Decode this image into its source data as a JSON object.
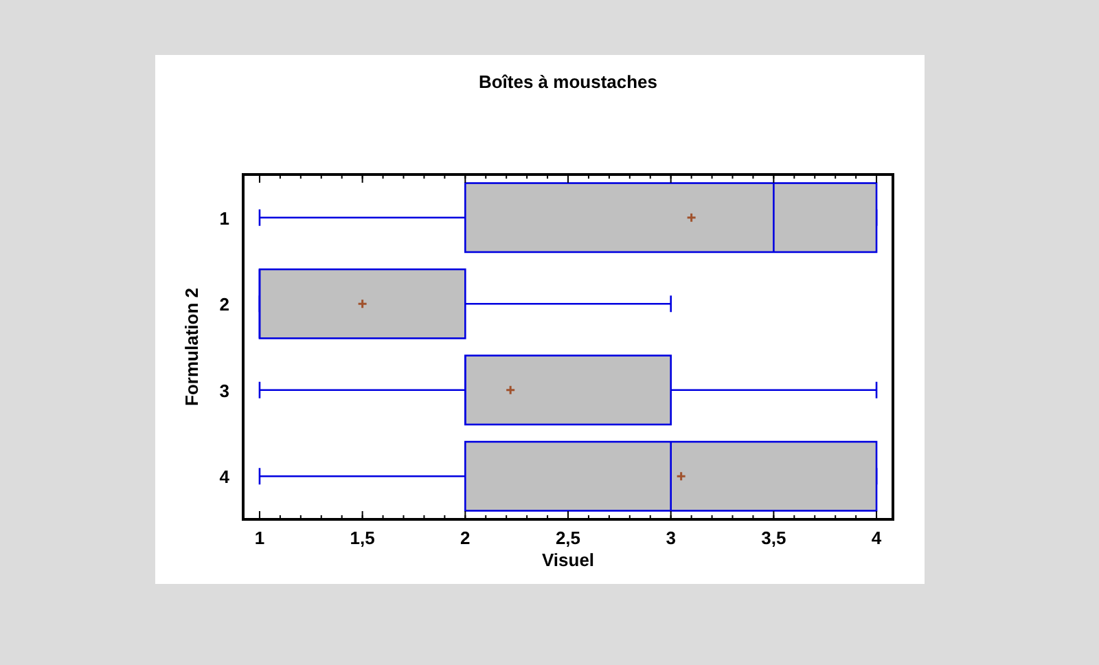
{
  "chart_data": {
    "type": "box",
    "title": "Boîtes à moustaches",
    "xlabel": "Visuel",
    "ylabel": "Formulation 2",
    "orientation": "horizontal",
    "categories": [
      "1",
      "2",
      "3",
      "4"
    ],
    "series": [
      {
        "color": "#c0c0c0",
        "boxes": [
          {
            "low": 1,
            "q1": 2,
            "median": 3.5,
            "q3": 4,
            "high": 4,
            "mean": 3.1
          },
          {
            "low": 1,
            "q1": 1,
            "median": 1,
            "q3": 2,
            "high": 3,
            "mean": 1.5
          },
          {
            "low": 1,
            "q1": 2,
            "median": 2,
            "q3": 3,
            "high": 4,
            "mean": 2.22
          },
          {
            "low": 1,
            "q1": 2,
            "median": 3,
            "q3": 4,
            "high": 4,
            "mean": 3.05
          }
        ]
      }
    ],
    "xlim": [
      0.92,
      4.08
    ],
    "xticks": [
      1,
      {
        "value": 1.5,
        "label": "1,5"
      },
      2,
      {
        "value": 2.5,
        "label": "2,5"
      },
      3,
      {
        "value": 3.5,
        "label": "3,5"
      },
      4
    ]
  }
}
